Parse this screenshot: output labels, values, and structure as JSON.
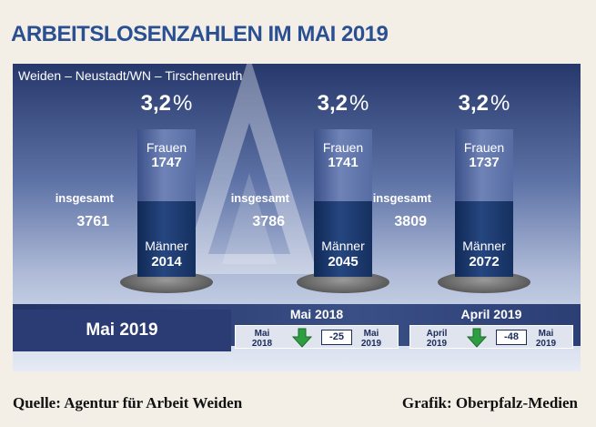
{
  "title": "ARBEITSLOSENZAHLEN IM MAI 2019",
  "region": "Weiden – Neustadt/WN – Tirschenreuth",
  "month": "Mai 2019",
  "colors": {
    "title": "#2a4f93",
    "women_segment": "#566ca2",
    "men_segment": "#1b3a70",
    "arrow_down": "#2f9e43",
    "text_dark": "#1c2c5a"
  },
  "chart_data": {
    "type": "bar",
    "stacked": true,
    "labels": {
      "women": "Frauen",
      "men": "Männer",
      "total": "insgesamt"
    },
    "groups": [
      {
        "rate": "3,2",
        "rate_unit": "%",
        "women": 1747,
        "men": 2014,
        "total": 3761
      },
      {
        "rate": "3,2",
        "rate_unit": "%",
        "women": 1741,
        "men": 2045,
        "total": 3786
      },
      {
        "rate": "3,2",
        "rate_unit": "%",
        "women": 1737,
        "men": 2072,
        "total": 3809
      }
    ]
  },
  "comparisons": [
    {
      "heading": "Mai 2018",
      "from_month": "Mai",
      "from_year": "2018",
      "delta": "-25",
      "to_month": "Mai",
      "to_year": "2019",
      "arrow_icon": "arrow-down-icon"
    },
    {
      "heading": "April 2019",
      "from_month": "April",
      "from_year": "2019",
      "delta": "-48",
      "to_month": "Mai",
      "to_year": "2019",
      "arrow_icon": "arrow-down-icon"
    }
  ],
  "footer": {
    "source": "Quelle: Agentur für Arbeit Weiden",
    "credit": "Grafik: Oberpfalz-Medien"
  }
}
